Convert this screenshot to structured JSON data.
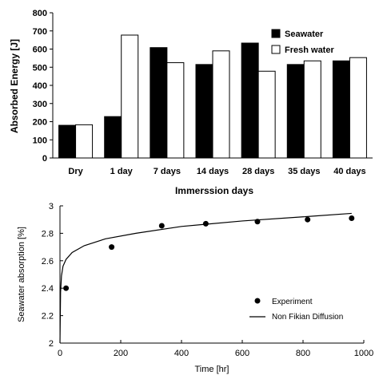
{
  "chart_data": [
    {
      "type": "bar",
      "categories": [
        "Dry",
        "1 day",
        "7 days",
        "14 days",
        "28 days",
        "35 days",
        "40 days"
      ],
      "series": [
        {
          "name": "Seawater",
          "color": "#000000",
          "values": [
            180,
            228,
            608,
            515,
            633,
            515,
            535
          ]
        },
        {
          "name": "Fresh water",
          "color": "#ffffff",
          "values": [
            183,
            677,
            525,
            590,
            478,
            535,
            553
          ]
        }
      ],
      "xlabel": "Immerssion days",
      "ylabel": "Absorbed Energy [J]",
      "ylim": [
        0,
        800
      ],
      "yticks": [
        "0",
        "100",
        "200",
        "300",
        "400",
        "500",
        "600",
        "700",
        "800"
      ],
      "legend": "top-right",
      "grid": false
    },
    {
      "type": "scatter",
      "series": [
        {
          "name": "Experiment",
          "x": [
            20,
            170,
            335,
            480,
            650,
            815,
            960
          ],
          "y": [
            2.4,
            2.7,
            2.855,
            2.87,
            2.885,
            2.9,
            2.91
          ]
        },
        {
          "name": "Non Fikian Diffusion",
          "style": "line",
          "x": [
            0,
            2,
            5,
            10,
            20,
            40,
            80,
            150,
            250,
            400,
            600,
            800,
            960
          ],
          "y": [
            2.0,
            2.37,
            2.49,
            2.56,
            2.61,
            2.66,
            2.71,
            2.76,
            2.8,
            2.85,
            2.89,
            2.92,
            2.945
          ]
        }
      ],
      "xlabel": "Time [hr]",
      "ylabel": "Seawater absorption [%]",
      "xlim": [
        0,
        1000
      ],
      "ylim": [
        2,
        3
      ],
      "xticks": [
        "0",
        "200",
        "400",
        "600",
        "800",
        "1000"
      ],
      "yticks": [
        "2",
        "2.2",
        "2.4",
        "2.6",
        "2.8",
        "3"
      ],
      "legend": "bottom-right",
      "grid": false
    }
  ]
}
